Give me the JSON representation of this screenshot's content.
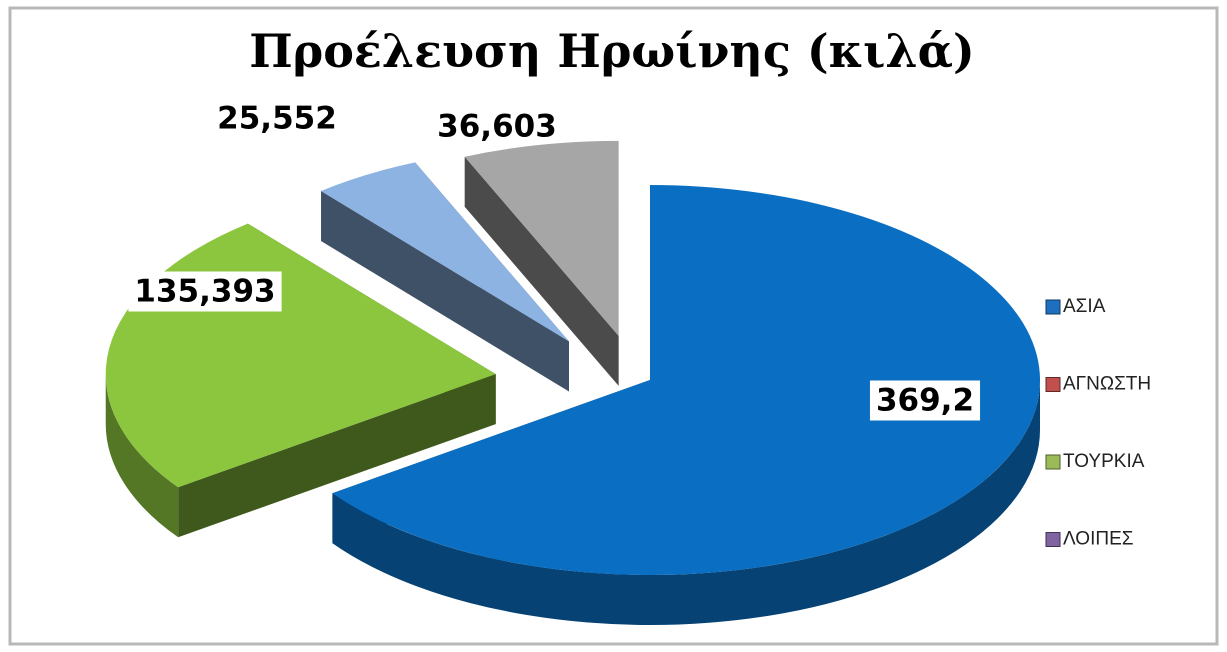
{
  "chart_data": {
    "type": "pie3d",
    "title": "Προέλευση Ηρωίνης (κιλά)",
    "categories": [
      "ΑΣΙΑ",
      "ΑΓΝΩΣΤΗ",
      "ΤΟΥΡΚΙΑ",
      "ΛΟΙΠΕΣ"
    ],
    "values": [
      369.2,
      135.393,
      25.552,
      36.603
    ],
    "value_labels": [
      "369,2",
      "135,393",
      "25,552",
      "36,603"
    ],
    "colors": [
      "#0a6fc2",
      "#8cc63f",
      "#8db3e2",
      "#a6a6a6"
    ],
    "legend_colors": [
      "#1f6fc0",
      "#c0504d",
      "#9bbb59",
      "#8064a2"
    ],
    "legend": "right"
  }
}
